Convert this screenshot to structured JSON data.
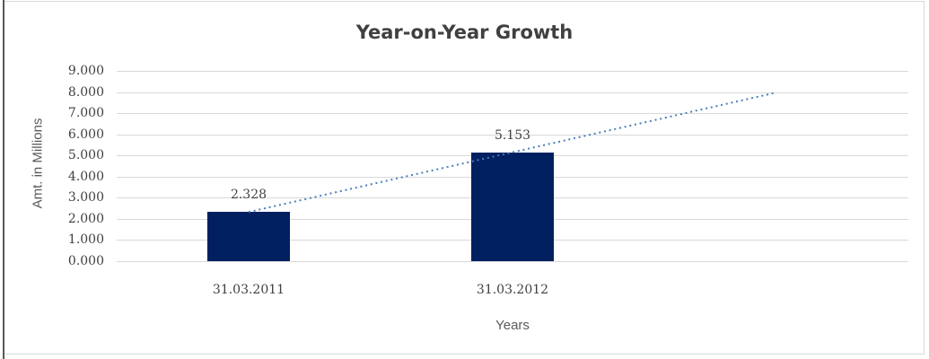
{
  "title": "Year-on-Year Growth",
  "y_axis": {
    "title": "Amt. in Millions",
    "tick_labels": [
      "9.000",
      "8.000",
      "7.000",
      "6.000",
      "5.000",
      "4.000",
      "3.000",
      "2.000",
      "1.000",
      "0.000"
    ]
  },
  "x_axis": {
    "title": "Years",
    "category_labels": [
      "31.03.2011",
      "31.03.2012"
    ]
  },
  "colors": {
    "bar": "#002060",
    "trendline": "#4a7ebb",
    "gridline": "#d9d9d9",
    "title_text": "#404040",
    "axis_title_text": "#595959",
    "tick_text": "#404040",
    "frame": "#d9d9d9",
    "left_edge": "#595959"
  },
  "chart_data": {
    "type": "bar",
    "title": "Year-on-Year Growth",
    "categories": [
      "31.03.2011",
      "31.03.2012"
    ],
    "values": [
      2.328,
      5.153
    ],
    "data_labels": [
      "2.328",
      "5.153"
    ],
    "xlabel": "Years",
    "ylabel": "Amt. in Millions",
    "ylim": [
      0,
      9
    ],
    "ytick_step": 1,
    "ytick_labels": [
      "9.000",
      "8.000",
      "7.000",
      "6.000",
      "5.000",
      "4.000",
      "3.000",
      "2.000",
      "1.000",
      "0.000"
    ],
    "grid": true,
    "legend": false,
    "trendline": {
      "type": "linear",
      "style": "dotted",
      "start_value": 2.328,
      "end_value": 7.978,
      "forecast_forward_periods": 1
    }
  }
}
